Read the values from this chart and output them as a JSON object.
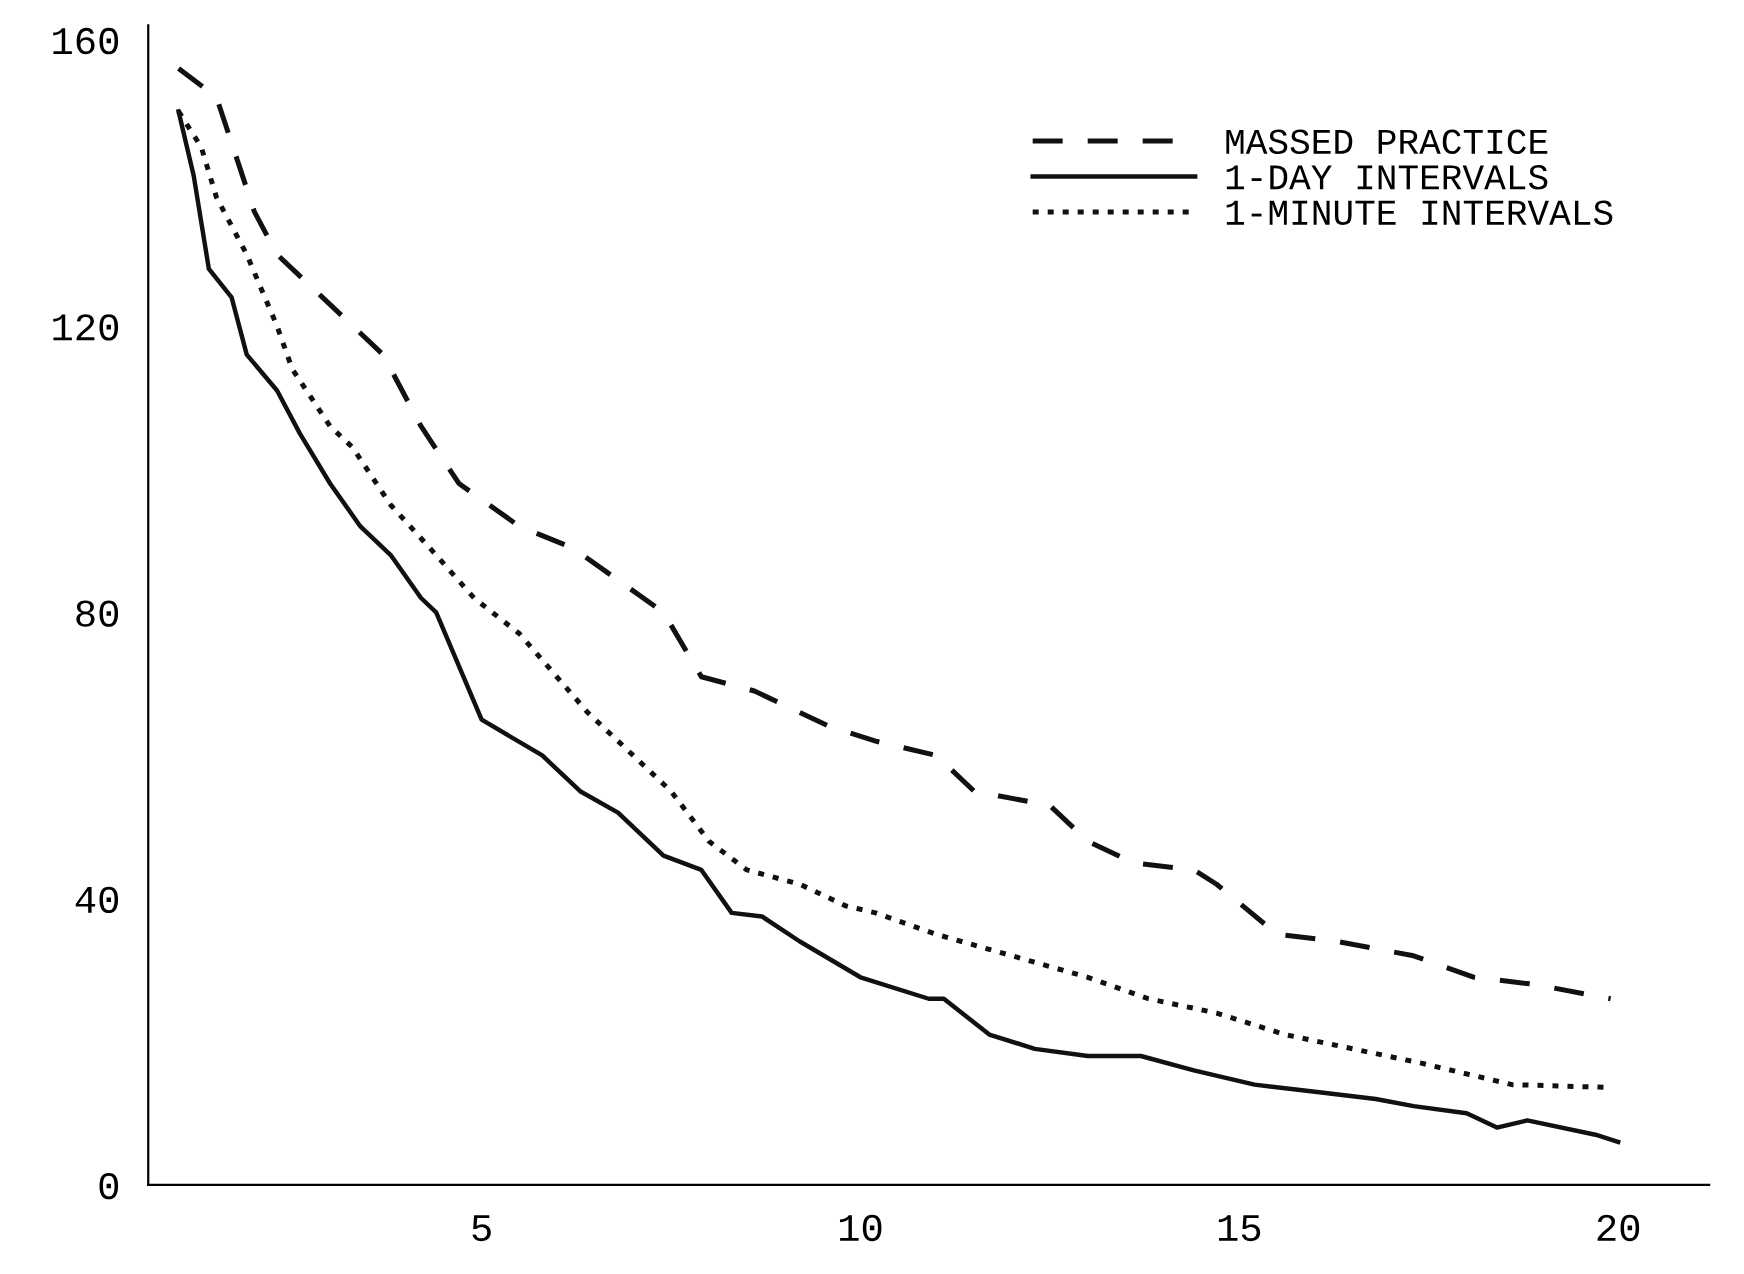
{
  "chart_data": {
    "type": "line",
    "xlim": [
      0.6,
      21.2
    ],
    "ylim": [
      0,
      162
    ],
    "xticks": [
      5,
      10,
      15,
      20
    ],
    "yticks": [
      0,
      40,
      80,
      120,
      160
    ],
    "grid": false,
    "legend": "top right",
    "marker": "none",
    "series": [
      {
        "name": "MASSED PRACTICE",
        "color": "#111111",
        "line_style": "dashed",
        "x": [
          1,
          1.5,
          2,
          2.3,
          2.9,
          3.7,
          4.2,
          4.7,
          5.5,
          6.2,
          7.4,
          7.9,
          8.6,
          9.6,
          10.2,
          11,
          11.5,
          12.5,
          13,
          13.6,
          14.4,
          14.7,
          15.5,
          16.3,
          17.3,
          18.1,
          18.9,
          19.9
        ],
        "values": [
          156,
          152,
          136,
          130,
          124,
          116,
          106,
          98,
          92,
          89,
          80,
          71,
          69,
          64,
          62,
          60,
          55,
          53,
          48,
          45,
          44,
          42,
          35,
          34,
          32,
          29,
          28,
          26
        ]
      },
      {
        "name": "1-DAY INTERVALS",
        "color": "#111111",
        "line_style": "solid",
        "x": [
          1,
          1.2,
          1.4,
          1.7,
          1.9,
          2.3,
          2.6,
          3.0,
          3.4,
          3.8,
          4.2,
          4.4,
          5.0,
          5.8,
          6.3,
          6.8,
          7.4,
          7.9,
          8.3,
          8.7,
          9.2,
          10.0,
          10.9,
          11.1,
          11.7,
          12.3,
          13,
          13.7,
          14.4,
          15.2,
          16,
          16.8,
          17.3,
          18,
          18.4,
          18.8,
          19.7,
          20
        ],
        "values": [
          150,
          141,
          128,
          124,
          116,
          111,
          105,
          98,
          92,
          88,
          82,
          80,
          65,
          60,
          55,
          52,
          46,
          44,
          38,
          37.5,
          34,
          29,
          26,
          26,
          21,
          19,
          18,
          18,
          16,
          14,
          13,
          12,
          11,
          10,
          8,
          9,
          7,
          6
        ]
      },
      {
        "name": "1-MINUTE INTERVALS",
        "color": "#111111",
        "line_style": "dotted",
        "x": [
          1,
          1.3,
          1.5,
          1.9,
          2.3,
          2.5,
          3.0,
          3.3,
          3.8,
          4.4,
          4.9,
          5.5,
          6.4,
          7.0,
          7.5,
          8.0,
          8.5,
          9.2,
          9.8,
          10.2,
          11,
          12,
          13,
          13.8,
          14.7,
          15.6,
          16.5,
          17.4,
          18.6,
          19.9
        ],
        "values": [
          150,
          145,
          138,
          130,
          120,
          114,
          106,
          103,
          95,
          88,
          82,
          77,
          66,
          60,
          55,
          48,
          44,
          42,
          39,
          38,
          35,
          32,
          29,
          26,
          24,
          21,
          19,
          17,
          14,
          13.6
        ]
      }
    ]
  }
}
